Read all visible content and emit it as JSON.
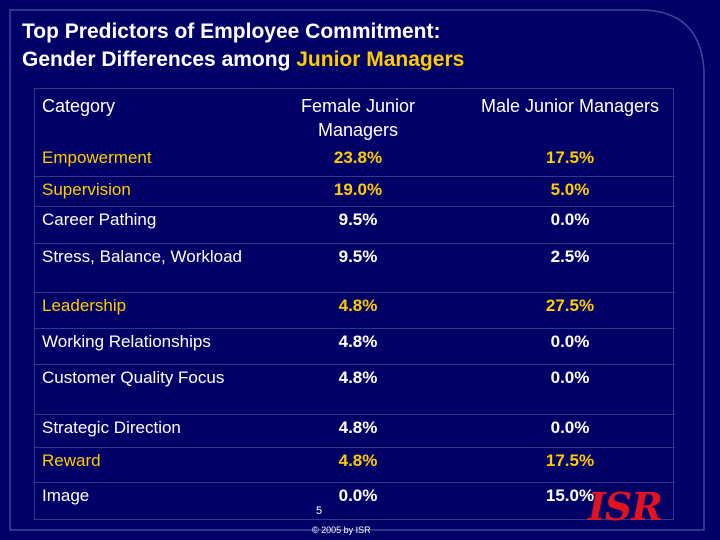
{
  "title_line1": "Top Predictors of Employee Commitment:",
  "title_line2_prefix": "Gender Differences among ",
  "title_line2_highlight": "Junior Managers",
  "headers": {
    "category": "Category",
    "female": "Female Junior Managers",
    "male": "Male Junior Managers"
  },
  "rows": [
    {
      "category": "Empowerment",
      "female": "23.8%",
      "male": "17.5%",
      "highlight": true
    },
    {
      "category": "Supervision",
      "female": "19.0%",
      "male": "5.0%",
      "highlight": true
    },
    {
      "category": "Career Pathing",
      "female": "9.5%",
      "male": "0.0%",
      "highlight": false
    },
    {
      "category": "Stress, Balance, Workload",
      "female": "9.5%",
      "male": "2.5%",
      "highlight": false
    },
    {
      "category": "Leadership",
      "female": "4.8%",
      "male": "27.5%",
      "highlight": true
    },
    {
      "category": "Working Relationships",
      "female": "4.8%",
      "male": "0.0%",
      "highlight": false
    },
    {
      "category": "Customer Quality Focus",
      "female": "4.8%",
      "male": "0.0%",
      "highlight": false
    },
    {
      "category": "Strategic Direction",
      "female": "4.8%",
      "male": "0.0%",
      "highlight": false
    },
    {
      "category": "Reward",
      "female": "4.8%",
      "male": "17.5%",
      "highlight": true
    },
    {
      "category": "Image",
      "female": "0.0%",
      "male": "15.0%",
      "highlight": false
    }
  ],
  "page_number": "5",
  "copyright": "© 2005 by ISR",
  "logo_text": "ISR",
  "colors": {
    "background": "#000066",
    "highlight": "#ffcc00",
    "text": "#ffffff",
    "logo": "#e0141e"
  }
}
